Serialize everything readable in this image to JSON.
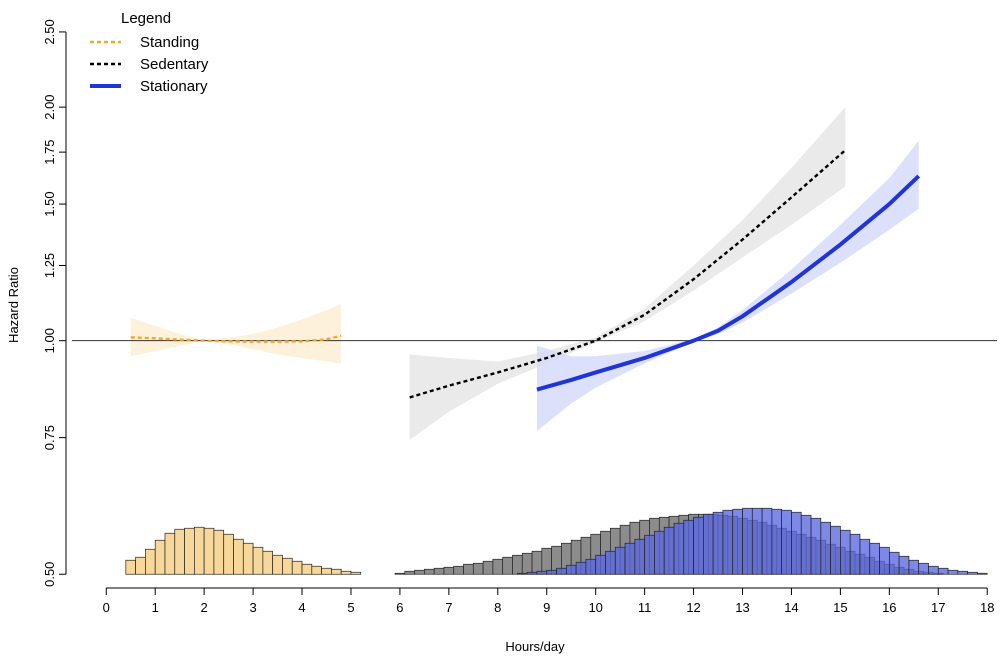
{
  "chart_data": {
    "type": "line",
    "xlabel": "Hours/day",
    "ylabel": "Hazard Ratio",
    "xlim": [
      -0.7,
      18.2
    ],
    "ylim": [
      0.48,
      2.7
    ],
    "y_scale": "log",
    "x_ticks": [
      0,
      1,
      2,
      3,
      4,
      5,
      6,
      7,
      8,
      9,
      10,
      11,
      12,
      13,
      14,
      15,
      16,
      17,
      18
    ],
    "y_ticks": [
      0.5,
      0.75,
      1.0,
      1.25,
      1.5,
      1.75,
      2.0,
      2.5
    ],
    "y_tick_labels": [
      "0.50",
      "0.75",
      "1.00",
      "1.25",
      "1.50",
      "1.75",
      "2.00",
      "2.50"
    ],
    "reference_line": 1.0,
    "legend": {
      "title": "Legend",
      "position": "top-left",
      "entries": [
        {
          "label": "Standing",
          "style": "dashed",
          "color": "#f0a830"
        },
        {
          "label": "Sedentary",
          "style": "dashed",
          "color": "#000000"
        },
        {
          "label": "Stationary",
          "style": "solid",
          "color": "#1f35d8"
        }
      ]
    },
    "series": [
      {
        "name": "Standing",
        "color": "#f0a830",
        "band_color": "#fdefd6",
        "style": "dashed",
        "x": [
          0.5,
          1.0,
          1.5,
          2.0,
          2.5,
          3.0,
          3.5,
          4.0,
          4.5,
          4.8
        ],
        "y": [
          1.01,
          1.007,
          1.003,
          1.0,
          0.998,
          0.997,
          0.997,
          0.998,
          1.004,
          1.015
        ],
        "lower": [
          0.955,
          0.97,
          0.985,
          1.0,
          0.99,
          0.975,
          0.96,
          0.95,
          0.94,
          0.935
        ],
        "upper": [
          1.07,
          1.045,
          1.02,
          1.0,
          1.008,
          1.02,
          1.04,
          1.065,
          1.095,
          1.115
        ]
      },
      {
        "name": "Sedentary",
        "color": "#000000",
        "band_color": "#e6e6e6",
        "style": "dashed",
        "x": [
          6.2,
          7.0,
          8.0,
          9.0,
          10.0,
          11.0,
          12.0,
          13.0,
          14.0,
          15.1
        ],
        "y": [
          0.845,
          0.875,
          0.91,
          0.95,
          1.0,
          1.08,
          1.2,
          1.35,
          1.53,
          1.76
        ],
        "lower": [
          0.745,
          0.81,
          0.88,
          0.935,
          0.995,
          1.06,
          1.16,
          1.28,
          1.41,
          1.58
        ],
        "upper": [
          0.96,
          0.95,
          0.94,
          0.97,
          1.01,
          1.1,
          1.25,
          1.43,
          1.67,
          2.0
        ]
      },
      {
        "name": "Stationary",
        "color": "#1f35d8",
        "band_color": "#d6dafa",
        "style": "solid",
        "x": [
          8.8,
          9.5,
          10.0,
          11.0,
          12.0,
          12.5,
          13.0,
          14.0,
          15.0,
          16.0,
          16.6
        ],
        "y": [
          0.865,
          0.89,
          0.91,
          0.95,
          1.0,
          1.03,
          1.075,
          1.19,
          1.33,
          1.5,
          1.63
        ],
        "lower": [
          0.765,
          0.83,
          0.87,
          0.935,
          0.995,
          1.02,
          1.055,
          1.15,
          1.26,
          1.39,
          1.48
        ],
        "upper": [
          0.985,
          0.955,
          0.955,
          0.97,
          1.005,
          1.04,
          1.095,
          1.235,
          1.41,
          1.62,
          1.81
        ]
      }
    ],
    "histograms": [
      {
        "name": "Standing",
        "fill": "#f8d79a",
        "x_start": 0.4,
        "bin_width": 0.2,
        "counts": [
          14,
          17,
          25,
          34,
          41,
          45,
          46,
          47,
          46,
          44,
          40,
          35,
          31,
          27,
          23,
          19,
          16,
          13,
          10,
          8,
          6,
          5,
          3,
          2
        ]
      },
      {
        "name": "Sedentary",
        "fill": "#8c8c8c",
        "x_start": 5.9,
        "bin_width": 0.2,
        "counts": [
          1,
          3,
          4,
          5,
          6,
          7,
          8,
          10,
          11,
          13,
          15,
          17,
          19,
          21,
          23,
          26,
          28,
          31,
          34,
          37,
          40,
          43,
          46,
          49,
          52,
          54,
          56,
          57,
          58,
          59,
          60,
          60,
          60,
          59,
          58,
          56,
          54,
          52,
          49,
          46,
          43,
          40,
          37,
          34,
          30,
          27,
          23,
          20,
          17,
          13,
          10,
          7,
          5,
          3,
          2,
          1
        ]
      },
      {
        "name": "Stationary",
        "fill": "#5a68e0",
        "x_start": 8.4,
        "bin_width": 0.2,
        "counts": [
          1,
          2,
          3,
          4,
          6,
          9,
          12,
          15,
          19,
          23,
          27,
          31,
          35,
          39,
          43,
          47,
          51,
          54,
          57,
          60,
          62,
          64,
          65,
          66,
          66,
          66,
          65,
          64,
          62,
          59,
          56,
          52,
          48,
          44,
          40,
          35,
          31,
          27,
          22,
          18,
          14,
          11,
          8,
          6,
          4,
          3,
          2,
          1
        ]
      }
    ]
  }
}
